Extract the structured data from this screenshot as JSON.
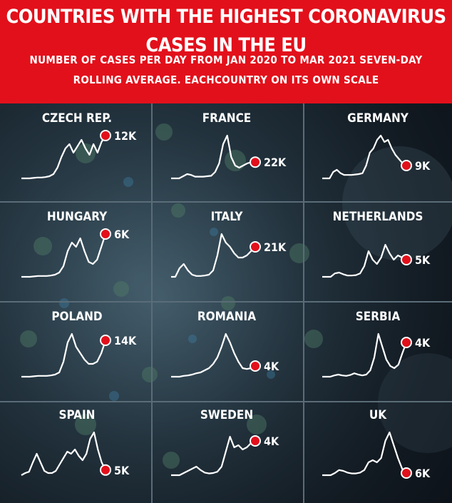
{
  "header": {
    "title": "COUNTRIES WITH THE HIGHEST CORONAVIRUS CASES IN THE EU",
    "subtitle": "NUMBER OF CASES PER DAY FROM JAN 2020 TO MAR 2021 SEVEN-DAY ROLLING AVERAGE. EACHCOUNTRY ON ITS OWN SCALE"
  },
  "colors": {
    "header_bg": "#e2101b",
    "line": "#ffffff",
    "dot": "#e2101b",
    "text": "#ffffff"
  },
  "chart_data": {
    "type": "line",
    "title": "COUNTRIES WITH THE HIGHEST CORONAVIRUS CASES IN THE EU",
    "subtitle": "NUMBER OF CASES PER DAY FROM JAN 2020 TO MAR 2021 SEVEN-DAY ROLLING AVERAGE. EACHCOUNTRY ON ITS OWN SCALE",
    "x_range": [
      "Jan 2020",
      "Mar 2021"
    ],
    "grid": true,
    "panels": [
      {
        "name": "CZECH REP.",
        "latest_label": "12K",
        "values": [
          0,
          0,
          0,
          0.01,
          0.02,
          0.02,
          0.03,
          0.05,
          0.1,
          0.25,
          0.5,
          0.7,
          0.8,
          0.6,
          0.75,
          0.9,
          0.7,
          0.55,
          0.8,
          0.6,
          0.85,
          1.0
        ]
      },
      {
        "name": "FRANCE",
        "latest_label": "22K",
        "values": [
          0,
          0,
          0,
          0.05,
          0.1,
          0.08,
          0.04,
          0.04,
          0.04,
          0.05,
          0.06,
          0.15,
          0.35,
          0.8,
          1.0,
          0.5,
          0.3,
          0.25,
          0.3,
          0.35,
          0.38,
          0.38
        ]
      },
      {
        "name": "GERMANY",
        "latest_label": "9K",
        "values": [
          0,
          0,
          0,
          0.15,
          0.2,
          0.12,
          0.08,
          0.08,
          0.08,
          0.09,
          0.1,
          0.12,
          0.3,
          0.6,
          0.7,
          0.9,
          1.0,
          0.85,
          0.9,
          0.7,
          0.55,
          0.45,
          0.35,
          0.3
        ]
      },
      {
        "name": "HUNGARY",
        "latest_label": "6K",
        "values": [
          0,
          0,
          0,
          0.01,
          0.02,
          0.02,
          0.02,
          0.03,
          0.05,
          0.1,
          0.25,
          0.6,
          0.8,
          0.7,
          0.9,
          0.6,
          0.35,
          0.3,
          0.4,
          0.7,
          1.0
        ]
      },
      {
        "name": "ITALY",
        "latest_label": "21K",
        "values": [
          0,
          0,
          0.2,
          0.3,
          0.15,
          0.05,
          0.02,
          0.02,
          0.03,
          0.05,
          0.15,
          0.5,
          1.0,
          0.8,
          0.7,
          0.55,
          0.45,
          0.45,
          0.5,
          0.6,
          0.7
        ]
      },
      {
        "name": "NETHERLANDS",
        "latest_label": "5K",
        "values": [
          0,
          0,
          0,
          0.08,
          0.1,
          0.06,
          0.03,
          0.03,
          0.04,
          0.08,
          0.25,
          0.6,
          0.4,
          0.3,
          0.45,
          0.75,
          0.55,
          0.4,
          0.5,
          0.45,
          0.4
        ]
      },
      {
        "name": "POLAND",
        "latest_label": "14K",
        "values": [
          0,
          0,
          0,
          0.01,
          0.02,
          0.02,
          0.02,
          0.03,
          0.05,
          0.1,
          0.35,
          0.8,
          1.0,
          0.7,
          0.55,
          0.4,
          0.3,
          0.3,
          0.35,
          0.55,
          0.85
        ]
      },
      {
        "name": "ROMANIA",
        "latest_label": "4K",
        "values": [
          0,
          0,
          0,
          0.02,
          0.03,
          0.05,
          0.08,
          0.1,
          0.15,
          0.2,
          0.3,
          0.45,
          0.7,
          1.0,
          0.8,
          0.55,
          0.35,
          0.2,
          0.18,
          0.2,
          0.25
        ]
      },
      {
        "name": "SERBIA",
        "latest_label": "4K",
        "values": [
          0,
          0,
          0,
          0.03,
          0.05,
          0.03,
          0.02,
          0.04,
          0.08,
          0.05,
          0.03,
          0.05,
          0.15,
          0.45,
          1.0,
          0.7,
          0.4,
          0.25,
          0.2,
          0.28,
          0.55,
          0.8
        ]
      },
      {
        "name": "SPAIN",
        "latest_label": "5K",
        "values": [
          0,
          0.05,
          0.08,
          0.3,
          0.5,
          0.3,
          0.1,
          0.05,
          0.05,
          0.1,
          0.25,
          0.4,
          0.55,
          0.5,
          0.6,
          0.45,
          0.35,
          0.5,
          0.85,
          1.0,
          0.6,
          0.3,
          0.12
        ]
      },
      {
        "name": "SWEDEN",
        "latest_label": "4K",
        "values": [
          0,
          0,
          0,
          0.05,
          0.1,
          0.15,
          0.2,
          0.12,
          0.06,
          0.04,
          0.05,
          0.08,
          0.2,
          0.55,
          0.9,
          0.65,
          0.7,
          0.6,
          0.65,
          0.75,
          0.8
        ]
      },
      {
        "name": "UK",
        "latest_label": "6K",
        "values": [
          0,
          0,
          0,
          0.05,
          0.12,
          0.1,
          0.06,
          0.04,
          0.04,
          0.06,
          0.12,
          0.3,
          0.35,
          0.3,
          0.4,
          0.8,
          1.0,
          0.7,
          0.4,
          0.15,
          0.05
        ]
      }
    ]
  }
}
